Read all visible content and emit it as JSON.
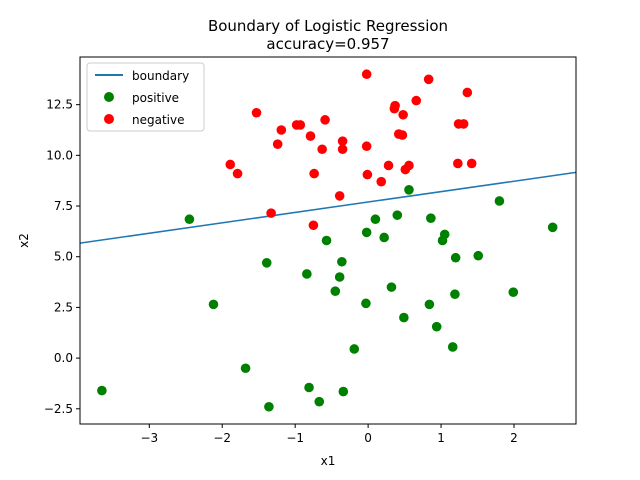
{
  "chart_data": {
    "type": "scatter",
    "title": "Boundary of Logistic Regression",
    "subtitle": "accuracy=0.957",
    "xlabel": "x1",
    "ylabel": "x2",
    "xlim": [
      -3.95,
      2.85
    ],
    "ylim": [
      -3.25,
      14.85
    ],
    "xticks": [
      -3,
      -2,
      -1,
      0,
      1,
      2
    ],
    "xtick_labels": [
      "−3",
      "−2",
      "−1",
      "0",
      "1",
      "2"
    ],
    "yticks": [
      -2.5,
      0.0,
      2.5,
      5.0,
      7.5,
      10.0,
      12.5
    ],
    "ytick_labels": [
      "−2.5",
      "0.0",
      "2.5",
      "5.0",
      "7.5",
      "10.0",
      "12.5"
    ],
    "grid": false,
    "legend_position": "top-left",
    "boundary": {
      "name": "boundary",
      "color": "#1f77b4",
      "x": [
        -3.95,
        2.85
      ],
      "y": [
        5.67,
        9.16
      ]
    },
    "series": [
      {
        "name": "positive",
        "color": "#008000",
        "points": [
          [
            -3.65,
            -1.6
          ],
          [
            -2.45,
            6.85
          ],
          [
            -2.12,
            2.65
          ],
          [
            -1.68,
            -0.5
          ],
          [
            -1.39,
            4.7
          ],
          [
            -1.36,
            -2.4
          ],
          [
            -0.84,
            4.15
          ],
          [
            -0.81,
            -1.45
          ],
          [
            -0.67,
            -2.15
          ],
          [
            -0.57,
            5.8
          ],
          [
            -0.45,
            3.3
          ],
          [
            -0.39,
            4.0
          ],
          [
            -0.36,
            4.75
          ],
          [
            -0.34,
            -1.65
          ],
          [
            -0.19,
            0.45
          ],
          [
            -0.02,
            6.2
          ],
          [
            -0.03,
            2.7
          ],
          [
            0.1,
            6.85
          ],
          [
            0.22,
            5.95
          ],
          [
            0.32,
            3.5
          ],
          [
            0.4,
            7.05
          ],
          [
            0.49,
            2.0
          ],
          [
            0.56,
            8.3
          ],
          [
            0.84,
            2.65
          ],
          [
            0.86,
            6.9
          ],
          [
            0.94,
            1.55
          ],
          [
            1.02,
            5.8
          ],
          [
            1.05,
            6.1
          ],
          [
            1.16,
            0.55
          ],
          [
            1.19,
            3.15
          ],
          [
            1.2,
            4.95
          ],
          [
            1.51,
            5.05
          ],
          [
            1.8,
            7.75
          ],
          [
            1.99,
            3.25
          ],
          [
            2.53,
            6.45
          ]
        ]
      },
      {
        "name": "negative",
        "color": "#ff0000",
        "points": [
          [
            -1.89,
            9.55
          ],
          [
            -1.79,
            9.1
          ],
          [
            -1.53,
            12.1
          ],
          [
            -1.33,
            7.15
          ],
          [
            -1.24,
            10.55
          ],
          [
            -1.19,
            11.25
          ],
          [
            -0.98,
            11.5
          ],
          [
            -0.93,
            11.5
          ],
          [
            -0.79,
            10.95
          ],
          [
            -0.74,
            9.1
          ],
          [
            -0.75,
            6.55
          ],
          [
            -0.63,
            10.3
          ],
          [
            -0.59,
            11.75
          ],
          [
            -0.39,
            8.0
          ],
          [
            -0.35,
            10.7
          ],
          [
            -0.35,
            10.3
          ],
          [
            -0.02,
            14.0
          ],
          [
            -0.02,
            10.45
          ],
          [
            -0.01,
            9.05
          ],
          [
            0.18,
            8.7
          ],
          [
            0.28,
            9.5
          ],
          [
            0.36,
            12.3
          ],
          [
            0.37,
            12.45
          ],
          [
            0.42,
            11.05
          ],
          [
            0.47,
            11.0
          ],
          [
            0.48,
            12.0
          ],
          [
            0.51,
            9.3
          ],
          [
            0.56,
            9.5
          ],
          [
            0.66,
            12.7
          ],
          [
            0.83,
            13.75
          ],
          [
            1.23,
            9.6
          ],
          [
            1.24,
            11.55
          ],
          [
            1.31,
            11.55
          ],
          [
            1.36,
            13.1
          ],
          [
            1.42,
            9.6
          ]
        ]
      }
    ]
  }
}
